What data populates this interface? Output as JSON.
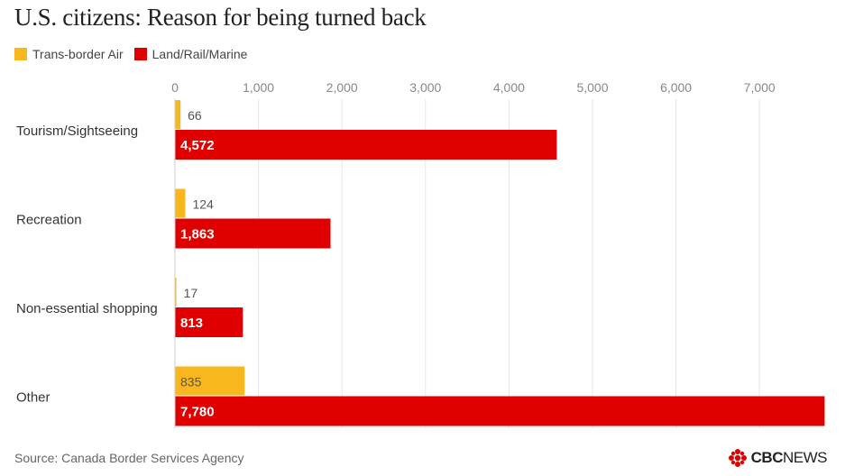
{
  "colors": {
    "air": "#f9b71e",
    "land": "#e10000"
  },
  "chart_data": {
    "type": "bar",
    "orientation": "horizontal",
    "title": "U.S. citizens: Reason for being turned back",
    "categories": [
      "Tourism/Sightseeing",
      "Recreation",
      "Non-essential shopping",
      "Other"
    ],
    "series": [
      {
        "name": "Trans-border Air",
        "values": [
          66,
          124,
          17,
          835
        ],
        "color": "#f9b71e"
      },
      {
        "name": "Land/Rail/Marine",
        "values": [
          4572,
          1863,
          813,
          7780
        ],
        "color": "#e10000"
      }
    ],
    "x_ticks": [
      0,
      1000,
      2000,
      3000,
      4000,
      5000,
      6000,
      7000
    ],
    "tick_labels": [
      "0",
      "1,000",
      "2,000",
      "3,000",
      "4,000",
      "5,000",
      "6,000",
      "7,000"
    ],
    "xlim": [
      0,
      7780
    ],
    "axis_position": "top",
    "grid": true,
    "legend_position": "top-left"
  },
  "source": "Source: Canada Border Services Agency",
  "logo": {
    "brand": "CBC",
    "word": "NEWS"
  }
}
